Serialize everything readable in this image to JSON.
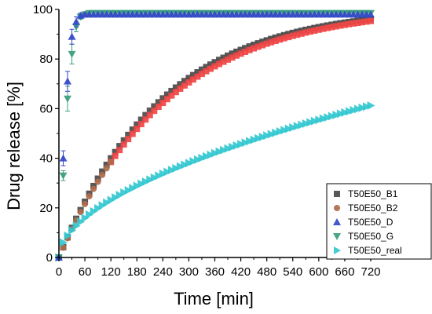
{
  "chart_data": {
    "type": "scatter",
    "title": "",
    "xlabel": "Time [min]",
    "ylabel": "Drug release [%]",
    "xlim": [
      0,
      720
    ],
    "ylim": [
      0,
      100
    ],
    "xticks": [
      0,
      60,
      120,
      180,
      240,
      300,
      360,
      420,
      480,
      540,
      600,
      660,
      720
    ],
    "yticks": [
      0,
      20,
      40,
      60,
      80,
      100
    ],
    "grid": false,
    "legend_position": "bottom-right",
    "series": [
      {
        "name": "T50E50_B1",
        "marker": "square",
        "color": "#4a4a4a",
        "model": {
          "kind": "exp",
          "ymax": 101,
          "k": 0.0042,
          "x_start": 0,
          "x_end": 720,
          "step": 10
        }
      },
      {
        "name": "T50E50_B2",
        "marker": "circle",
        "color": "#b06a4a",
        "model": {
          "kind": "exp",
          "ymax": 101,
          "k": 0.004,
          "x_start": 0,
          "x_end": 120,
          "step": 10
        }
      },
      {
        "name": "T50E50_D",
        "marker": "triangle-up",
        "color": "#3348c8",
        "points": [
          [
            0,
            0
          ],
          [
            10,
            40
          ],
          [
            20,
            71
          ],
          [
            30,
            89
          ],
          [
            40,
            95
          ],
          [
            50,
            97.5
          ],
          [
            60,
            98
          ],
          [
            70,
            98
          ],
          [
            80,
            98
          ],
          [
            90,
            98
          ]
        ],
        "errors": [
          0,
          3,
          4,
          3,
          2,
          1,
          0,
          0,
          0,
          0
        ],
        "plateau": {
          "y": 98,
          "x_start": 90,
          "x_end": 720,
          "step": 10
        }
      },
      {
        "name": "T50E50_G",
        "marker": "triangle-down",
        "color": "#3aa07a",
        "points": [
          [
            0,
            0
          ],
          [
            10,
            33
          ],
          [
            20,
            64
          ],
          [
            30,
            82
          ],
          [
            40,
            93
          ],
          [
            50,
            97
          ],
          [
            60,
            98
          ],
          [
            70,
            98.5
          ],
          [
            80,
            98.5
          ],
          [
            90,
            98.5
          ]
        ],
        "errors": [
          0,
          2,
          5,
          4,
          2,
          1,
          0,
          0,
          0,
          0
        ],
        "plateau": {
          "y": 98.5,
          "x_start": 90,
          "x_end": 720,
          "step": 10
        }
      },
      {
        "name": "T50E50_real",
        "marker": "triangle-right",
        "color": "#33c8d0",
        "model": {
          "kind": "power",
          "a": 1.72,
          "n": 0.543,
          "x_start": 0,
          "x_end": 720,
          "step": 10
        }
      }
    ],
    "overlay_series": {
      "name": "",
      "marker": "square",
      "color": "#f04545",
      "model": {
        "kind": "exp",
        "ymax": 101,
        "k": 0.004,
        "x_start": 120,
        "x_end": 720,
        "step": 10
      }
    }
  },
  "legend": {
    "items": [
      {
        "label": "T50E50_B1",
        "marker": "square",
        "color": "#4a4a4a"
      },
      {
        "label": "T50E50_B2",
        "marker": "circle",
        "color": "#b06a4a"
      },
      {
        "label": "T50E50_D",
        "marker": "triangle-up",
        "color": "#3348c8"
      },
      {
        "label": "T50E50_G",
        "marker": "triangle-down",
        "color": "#3aa07a"
      },
      {
        "label": "T50E50_real",
        "marker": "triangle-right",
        "color": "#33c8d0"
      }
    ]
  }
}
